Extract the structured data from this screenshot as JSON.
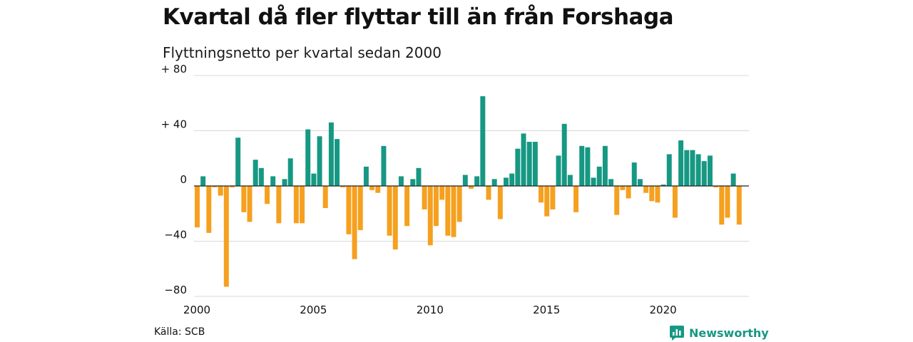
{
  "header": {
    "title": "Kvartal då fler flyttar till än från Forshaga",
    "subtitle": "Flyttningsnetto per kvartal sedan 2000"
  },
  "footer": {
    "source": "Källa: SCB",
    "brand": "Newsworthy"
  },
  "colors": {
    "positive": "#169883",
    "negative": "#F5A01F",
    "grid": "#d9d9d9",
    "brand": "#169883"
  },
  "chart_data": {
    "type": "bar",
    "title": "Kvartal då fler flyttar till än från Forshaga",
    "subtitle": "Flyttningsnetto per kvartal sedan 2000",
    "xlabel": "",
    "ylabel": "",
    "ylim": [
      -80,
      80
    ],
    "y_ticks": [
      80,
      40,
      0,
      -40,
      -80
    ],
    "y_tick_labels": [
      "+ 80",
      "+ 40",
      "0",
      "−40",
      "−80"
    ],
    "x_ticks": [
      2000,
      2005,
      2010,
      2015,
      2020
    ],
    "x_tick_labels": [
      "2000",
      "2005",
      "2010",
      "2015",
      "2020"
    ],
    "grid": true,
    "x_start": 2000,
    "periods_per_year": 4,
    "values": [
      -30,
      7,
      -34,
      -1,
      -7,
      -73,
      -1,
      35,
      -19,
      -26,
      19,
      13,
      -13,
      7,
      -27,
      5,
      20,
      -27,
      -27,
      41,
      9,
      36,
      -16,
      46,
      34,
      -1,
      -35,
      -53,
      -32,
      14,
      -3,
      -5,
      29,
      -36,
      -46,
      7,
      -29,
      5,
      13,
      -17,
      -43,
      -29,
      -10,
      -36,
      -37,
      -26,
      8,
      -2,
      7,
      65,
      -10,
      5,
      -24,
      6,
      9,
      27,
      38,
      32,
      32,
      -12,
      -22,
      -17,
      22,
      45,
      8,
      -19,
      29,
      28,
      6,
      14,
      29,
      5,
      -21,
      -3,
      -9,
      17,
      5,
      -5,
      -11,
      -12,
      1,
      23,
      -23,
      33,
      26,
      26,
      23,
      18,
      22,
      -1,
      -28,
      -23,
      9,
      -28
    ]
  }
}
